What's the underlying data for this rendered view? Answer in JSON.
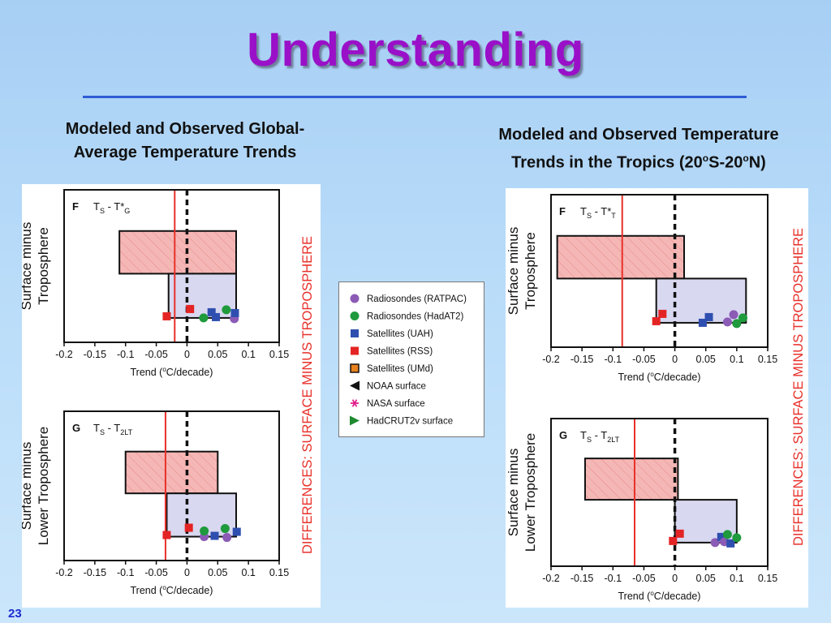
{
  "title": "Understanding",
  "subtitles": {
    "left": [
      "Modeled and Observed Global-",
      "Average Temperature Trends"
    ],
    "right_line1": "Modeled and Observed Temperature",
    "right_line2": {
      "pre": "Trends in the Tropics (20",
      "sup1": "o",
      "mid": "S-20",
      "sup2": "o",
      "post": "N)"
    }
  },
  "slide_number": "23",
  "colors": {
    "title": "#9a10c8",
    "model_range_fill": "#f5b7b5",
    "obs_range_fill": "#d8d8f0",
    "red_line": "#e8302a",
    "ratpac": "#8b5bb5",
    "hadat2": "#1f9a3c",
    "uah": "#2f4fb0",
    "rss": "#e42424",
    "umd": "#e8821e"
  },
  "legend": [
    {
      "label": "Radiosondes (RATPAC)",
      "marker": "circle",
      "color": "#8b5bb5"
    },
    {
      "label": "Radiosondes (HadAT2)",
      "marker": "circle",
      "color": "#1f9a3c"
    },
    {
      "label": "Satellites (UAH)",
      "marker": "square",
      "color": "#2f4fb0"
    },
    {
      "label": "Satellites (RSS)",
      "marker": "square",
      "color": "#e42424"
    },
    {
      "label": "Satellites (UMd)",
      "marker": "square-outline",
      "color": "#e8821e"
    },
    {
      "label": "NOAA surface",
      "marker": "triangle-left",
      "color": "#111111"
    },
    {
      "label": "NASA surface",
      "marker": "asterisk",
      "color": "#e0208a"
    },
    {
      "label": "HadCRUT2v surface",
      "marker": "triangle-right",
      "color": "#1f8a30"
    }
  ],
  "chart_data": [
    {
      "type": "scatter",
      "side_label": "DIFFERENCES:  SURFACE MINUS TROPOSPHERE",
      "panels": [
        {
          "panel_letter": "F",
          "title": {
            "main": "T",
            "sub1": "S",
            "mid": " - T*",
            "sub2": "G"
          },
          "ylabel": [
            "Surface minus",
            "Troposphere"
          ],
          "xlabel": {
            "pre": "Trend (",
            "sup": "o",
            "post": "C/decade)"
          },
          "xlim": [
            -0.2,
            0.15
          ],
          "xticks": [
            "-0.2",
            "-0.15",
            "-0.1",
            "-0.05",
            "0",
            "0.05",
            "0.1",
            "0.15"
          ],
          "tick_values": [
            -0.2,
            -0.15,
            -0.1,
            -0.05,
            0,
            0.05,
            0.1,
            0.15
          ],
          "model_range": [
            -0.11,
            0.08
          ],
          "obs_range": [
            -0.03,
            0.08
          ],
          "red_line": -0.02,
          "points": [
            {
              "x": -0.033,
              "series": "RSS"
            },
            {
              "x": 0.005,
              "series": "RSS"
            },
            {
              "x": 0.027,
              "series": "HadAT2"
            },
            {
              "x": 0.04,
              "series": "UAH"
            },
            {
              "x": 0.047,
              "series": "UAH"
            },
            {
              "x": 0.064,
              "series": "HadAT2"
            },
            {
              "x": 0.077,
              "series": "RATPAC"
            },
            {
              "x": 0.078,
              "series": "UAH"
            }
          ]
        },
        {
          "panel_letter": "G",
          "title": {
            "main": "T",
            "sub1": "S",
            "mid": " - T",
            "sub2": "2LT"
          },
          "ylabel": [
            "Surface minus",
            "Lower Troposphere"
          ],
          "xlabel": {
            "pre": "Trend (",
            "sup": "o",
            "post": "C/decade)"
          },
          "xlim": [
            -0.2,
            0.15
          ],
          "xticks": [
            "-0.2",
            "-0.15",
            "-0.1",
            "-0.05",
            "0",
            "0.05",
            "0.1",
            "0.15"
          ],
          "tick_values": [
            -0.2,
            -0.15,
            -0.1,
            -0.05,
            0,
            0.05,
            0.1,
            0.15
          ],
          "model_range": [
            -0.1,
            0.05
          ],
          "obs_range": [
            -0.033,
            0.08
          ],
          "red_line": -0.035,
          "points": [
            {
              "x": -0.033,
              "series": "RSS"
            },
            {
              "x": 0.003,
              "series": "RSS"
            },
            {
              "x": 0.028,
              "series": "RATPAC"
            },
            {
              "x": 0.028,
              "series": "HadAT2"
            },
            {
              "x": 0.045,
              "series": "UAH"
            },
            {
              "x": 0.062,
              "series": "HadAT2"
            },
            {
              "x": 0.065,
              "series": "RATPAC"
            },
            {
              "x": 0.081,
              "series": "UAH"
            }
          ]
        }
      ]
    },
    {
      "type": "scatter",
      "side_label": "DIFFERENCES:  SURFACE MINUS TROPOSPHERE",
      "panels": [
        {
          "panel_letter": "F",
          "title": {
            "main": "T",
            "sub1": "S",
            "mid": " - T*",
            "sub2": "T"
          },
          "ylabel": [
            "Surface minus",
            "Troposphere"
          ],
          "xlabel": {
            "pre": "Trend (",
            "sup": "o",
            "post": "C/decade)"
          },
          "xlim": [
            -0.2,
            0.15
          ],
          "xticks": [
            "-0.2",
            "-0.15",
            "-0.1",
            "-0.05",
            "0",
            "0.05",
            "0.1",
            "0.15"
          ],
          "tick_values": [
            -0.2,
            -0.15,
            -0.1,
            -0.05,
            0,
            0.05,
            0.1,
            0.15
          ],
          "model_range": [
            -0.19,
            0.015
          ],
          "obs_range": [
            -0.03,
            0.115
          ],
          "red_line": -0.085,
          "points": [
            {
              "x": -0.03,
              "series": "RSS"
            },
            {
              "x": -0.02,
              "series": "RSS"
            },
            {
              "x": 0.045,
              "series": "UAH"
            },
            {
              "x": 0.055,
              "series": "UAH"
            },
            {
              "x": 0.085,
              "series": "RATPAC"
            },
            {
              "x": 0.095,
              "series": "RATPAC"
            },
            {
              "x": 0.1,
              "series": "HadAT2"
            },
            {
              "x": 0.11,
              "series": "HadAT2"
            }
          ]
        },
        {
          "panel_letter": "G",
          "title": {
            "main": "T",
            "sub1": "S",
            "mid": " - T",
            "sub2": "2LT"
          },
          "ylabel": [
            "Surface minus",
            "Lower Troposphere"
          ],
          "xlabel": {
            "pre": "Trend (",
            "sup": "o",
            "post": "C/decade)"
          },
          "xlim": [
            -0.2,
            0.15
          ],
          "xticks": [
            "-0.2",
            "-0.15",
            "-0.1",
            "-0.05",
            "0",
            "0.05",
            "0.1",
            "0.15"
          ],
          "tick_values": [
            -0.2,
            -0.15,
            -0.1,
            -0.05,
            0,
            0.05,
            0.1,
            0.15
          ],
          "model_range": [
            -0.145,
            0.005
          ],
          "obs_range": [
            0.0,
            0.1
          ],
          "red_line": -0.065,
          "points": [
            {
              "x": -0.003,
              "series": "RSS"
            },
            {
              "x": 0.008,
              "series": "RSS"
            },
            {
              "x": 0.065,
              "series": "RATPAC"
            },
            {
              "x": 0.075,
              "series": "UAH"
            },
            {
              "x": 0.08,
              "series": "RATPAC"
            },
            {
              "x": 0.085,
              "series": "HadAT2"
            },
            {
              "x": 0.09,
              "series": "UAH"
            },
            {
              "x": 0.1,
              "series": "HadAT2"
            }
          ]
        }
      ]
    }
  ]
}
